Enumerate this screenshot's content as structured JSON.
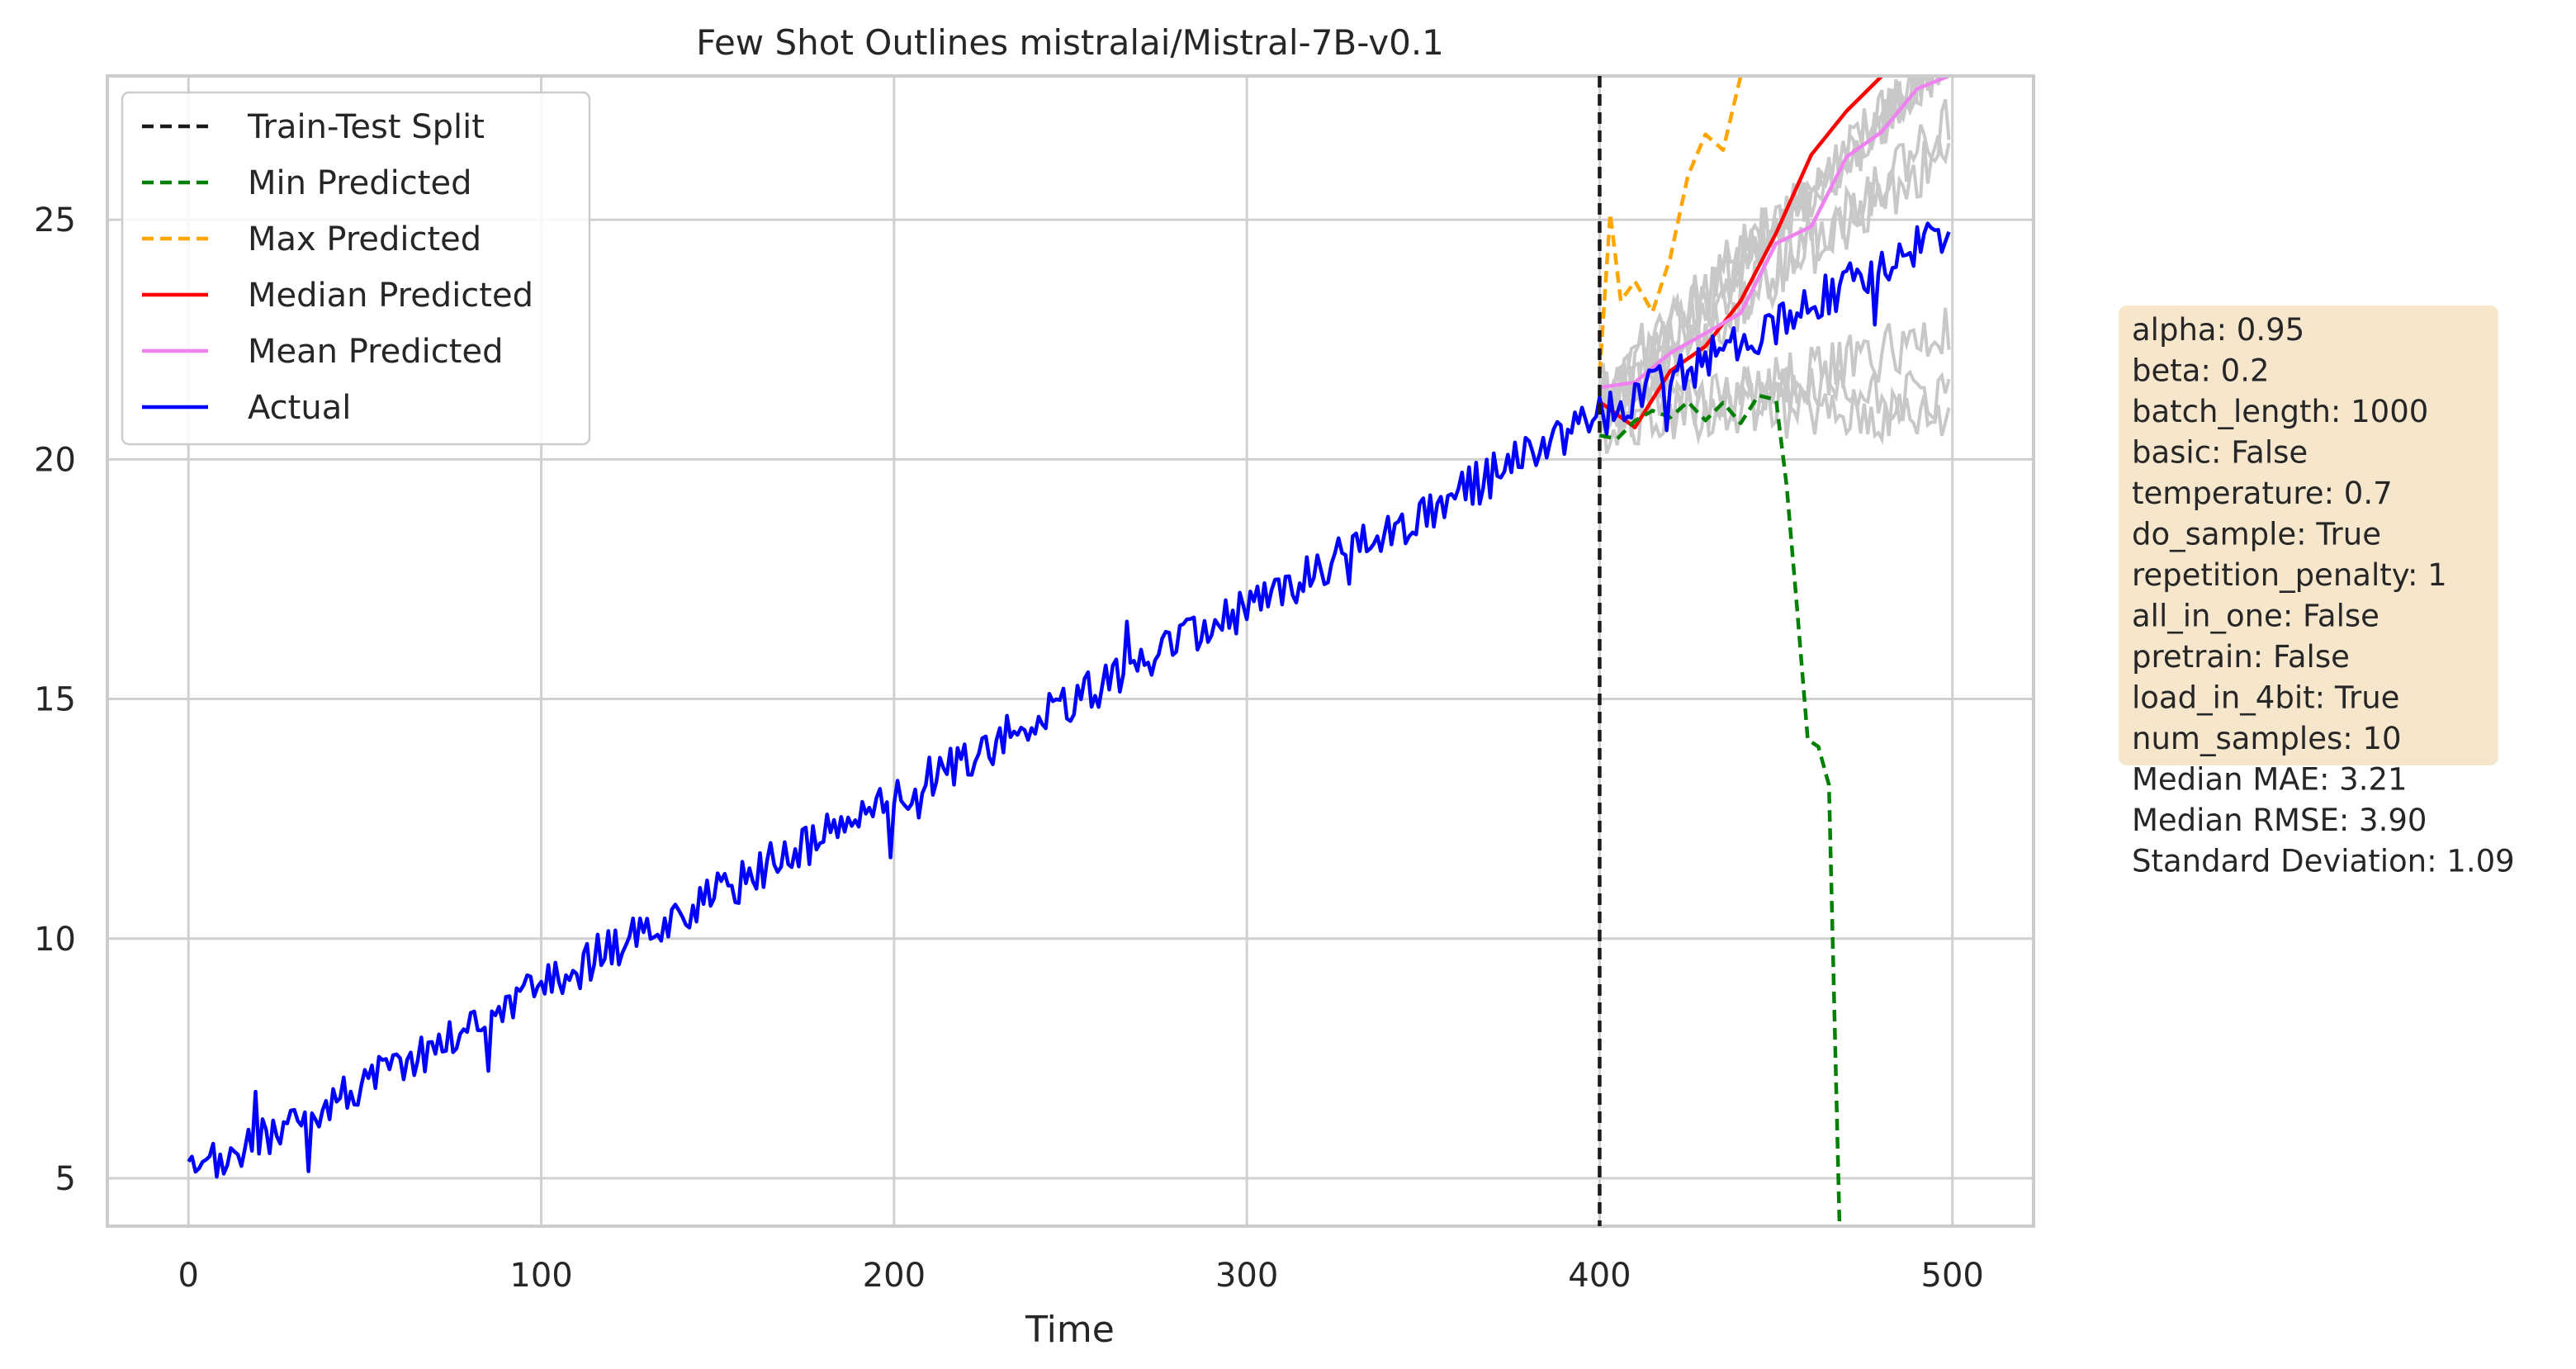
{
  "chart_data": {
    "type": "line",
    "title": "Few Shot Outlines mistralai/Mistral-7B-v0.1",
    "xlabel": "Time",
    "ylabel": "",
    "xlim": [
      -23,
      523
    ],
    "ylim": [
      4,
      28
    ],
    "x_ticks": [
      0,
      100,
      200,
      300,
      400,
      500
    ],
    "y_ticks": [
      5,
      10,
      15,
      20,
      25
    ],
    "grid": true,
    "legend_position": "top-left",
    "train_test_split": 400,
    "colors": {
      "split": "#1a1a1a",
      "min": "#008000",
      "max": "#ffa500",
      "median": "#ff0000",
      "mean": "#ee82ee",
      "actual": "#0000ff",
      "samples": "#c8c8c8",
      "grid": "#d0d0d0",
      "box_fill": "#f5e6cc"
    },
    "legend": [
      {
        "label": "Train-Test Split",
        "style": "dashed",
        "color": "#1a1a1a"
      },
      {
        "label": "Min Predicted",
        "style": "dashed",
        "color": "#008000"
      },
      {
        "label": "Max Predicted",
        "style": "dashed",
        "color": "#ffa500"
      },
      {
        "label": "Median Predicted",
        "style": "solid",
        "color": "#ff0000"
      },
      {
        "label": "Mean Predicted",
        "style": "solid",
        "color": "#ee82ee"
      },
      {
        "label": "Actual",
        "style": "solid",
        "color": "#0000ff"
      }
    ],
    "series": [
      {
        "name": "Actual",
        "x_range": [
          0,
          499
        ],
        "trend": {
          "start": 5.0,
          "end": 24.8
        },
        "noise": 0.45
      },
      {
        "name": "Min Predicted",
        "points": [
          [
            400,
            20.5
          ],
          [
            405,
            20.3
          ],
          [
            410,
            20.7
          ],
          [
            415,
            20.9
          ],
          [
            420,
            20.6
          ],
          [
            425,
            21.0
          ],
          [
            430,
            20.7
          ],
          [
            435,
            20.9
          ],
          [
            440,
            20.5
          ],
          [
            445,
            21.4
          ],
          [
            450,
            21.5
          ],
          [
            453,
            19.6
          ],
          [
            456,
            17.0
          ],
          [
            459,
            14.5
          ],
          [
            462,
            14.0
          ],
          [
            465,
            13.0
          ],
          [
            468,
            4.0
          ]
        ]
      },
      {
        "name": "Max Predicted",
        "points": [
          [
            400,
            21.8
          ],
          [
            403,
            25.0
          ],
          [
            406,
            23.2
          ],
          [
            410,
            23.6
          ],
          [
            415,
            22.8
          ],
          [
            420,
            24.0
          ],
          [
            425,
            25.8
          ],
          [
            430,
            26.5
          ],
          [
            435,
            26.2
          ],
          [
            440,
            28.0
          ]
        ]
      },
      {
        "name": "Median Predicted",
        "points": [
          [
            400,
            21.2
          ],
          [
            410,
            21.0
          ],
          [
            420,
            21.8
          ],
          [
            430,
            22.6
          ],
          [
            440,
            23.6
          ],
          [
            450,
            24.9
          ],
          [
            460,
            26.2
          ],
          [
            470,
            27.6
          ],
          [
            480,
            28.0
          ]
        ]
      },
      {
        "name": "Mean Predicted",
        "points": [
          [
            400,
            21.5
          ],
          [
            410,
            21.4
          ],
          [
            420,
            21.9
          ],
          [
            430,
            22.4
          ],
          [
            440,
            23.2
          ],
          [
            450,
            24.2
          ],
          [
            460,
            25.2
          ],
          [
            470,
            26.0
          ],
          [
            480,
            26.8
          ],
          [
            490,
            27.4
          ],
          [
            499,
            28.0
          ]
        ]
      }
    ],
    "samples": [
      {
        "start": 21.0,
        "end": 28.5
      },
      {
        "start": 21.2,
        "end": 28.5
      },
      {
        "start": 20.8,
        "end": 27.0
      },
      {
        "start": 21.5,
        "end": 21.2
      },
      {
        "start": 21.0,
        "end": 21.0
      },
      {
        "start": 20.6,
        "end": 22.6
      },
      {
        "start": 21.4,
        "end": 28.5
      },
      {
        "start": 21.2,
        "end": 26.5
      }
    ],
    "params": [
      "alpha: 0.95",
      "beta: 0.2",
      "batch_length: 1000",
      "basic: False",
      "temperature: 0.7",
      "do_sample: True",
      "repetition_penalty: 1",
      "all_in_one: False",
      "pretrain: False",
      "load_in_4bit: True",
      "num_samples: 10"
    ],
    "metrics": [
      "Median MAE: 3.21",
      "Median RMSE: 3.90",
      "Standard Deviation: 1.09"
    ]
  }
}
